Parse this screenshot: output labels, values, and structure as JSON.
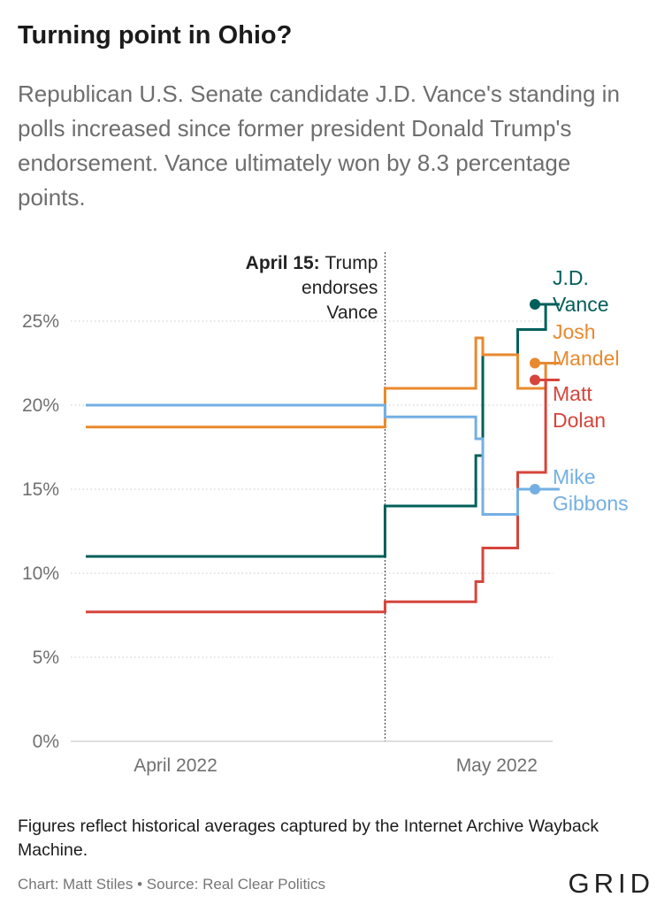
{
  "title": "Turning point in Ohio?",
  "subtitle": "Republican U.S. Senate candidate J.D. Vance's standing in polls increased since former president Donald Trump's endorsement. Vance ultimately won by 8.3 percentage points.",
  "note": "Figures reflect historical averages captured by the Internet Archive Wayback Machine.",
  "credits": "Chart: Matt Stiles • Source: Real Clear Politics",
  "logo": "GRID",
  "chart_data": {
    "type": "line",
    "step": true,
    "title": "",
    "xlabel": "",
    "ylabel": "",
    "x_range": [
      "2022-03-01",
      "2022-05-09"
    ],
    "ylim": [
      0,
      27
    ],
    "y_ticks": [
      {
        "value": 0,
        "label": "0%"
      },
      {
        "value": 5,
        "label": "5%"
      },
      {
        "value": 10,
        "label": "10%"
      },
      {
        "value": 15,
        "label": "15%"
      },
      {
        "value": 20,
        "label": "20%"
      },
      {
        "value": 25,
        "label": "25%"
      }
    ],
    "x_ticks": [
      {
        "date": "2022-03-16",
        "label": "April 2022"
      },
      {
        "date": "2022-05-01",
        "label": "May 2022"
      }
    ],
    "grid": true,
    "legend": "direct labels at line ends",
    "annotation": {
      "date": "2022-04-15",
      "bold": "April 15:",
      "lines": [
        "Trump",
        "endorses",
        "Vance"
      ]
    },
    "series": [
      {
        "name": "J.D. Vance",
        "label_lines": [
          "J.D.",
          "Vance"
        ],
        "color": "#005f5a",
        "points": [
          [
            "2022-03-01",
            11
          ],
          [
            "2022-04-15",
            14
          ],
          [
            "2022-04-28",
            17
          ],
          [
            "2022-04-29",
            23
          ],
          [
            "2022-05-04",
            24.5
          ],
          [
            "2022-05-08",
            26
          ],
          [
            "2022-05-10",
            26
          ]
        ]
      },
      {
        "name": "Josh Mandel",
        "label_lines": [
          "Josh",
          "Mandel"
        ],
        "color": "#e8892e",
        "points": [
          [
            "2022-03-01",
            18.7
          ],
          [
            "2022-04-15",
            21
          ],
          [
            "2022-04-28",
            24
          ],
          [
            "2022-04-29",
            23
          ],
          [
            "2022-05-04",
            21
          ],
          [
            "2022-05-08",
            22.5
          ],
          [
            "2022-05-10",
            22.5
          ]
        ]
      },
      {
        "name": "Matt Dolan",
        "label_lines": [
          "Matt",
          "Dolan"
        ],
        "color": "#d6453b",
        "points": [
          [
            "2022-03-01",
            7.7
          ],
          [
            "2022-04-15",
            8.3
          ],
          [
            "2022-04-28",
            9.5
          ],
          [
            "2022-04-29",
            11.5
          ],
          [
            "2022-05-04",
            16
          ],
          [
            "2022-05-08",
            21.5
          ],
          [
            "2022-05-10",
            21.5
          ]
        ]
      },
      {
        "name": "Mike Gibbons",
        "label_lines": [
          "Mike",
          "Gibbons"
        ],
        "color": "#73afe3",
        "points": [
          [
            "2022-03-01",
            20
          ],
          [
            "2022-04-15",
            19.3
          ],
          [
            "2022-04-28",
            18
          ],
          [
            "2022-04-29",
            13.5
          ],
          [
            "2022-05-04",
            15
          ],
          [
            "2022-05-10",
            15
          ]
        ]
      }
    ]
  }
}
